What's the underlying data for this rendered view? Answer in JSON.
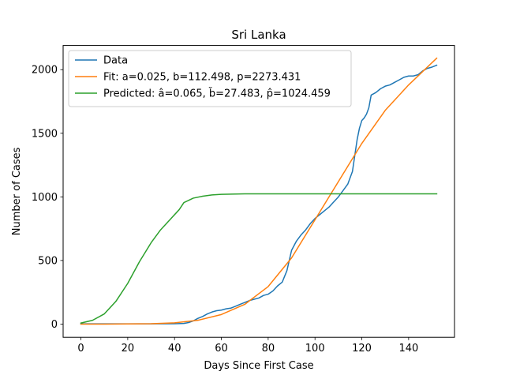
{
  "chart_data": {
    "type": "line",
    "title": "Sri Lanka",
    "xlabel": "Days Since First Case",
    "ylabel": "Number of Cases",
    "xlim": [
      -7.6,
      159.6
    ],
    "ylim": [
      -104,
      2190
    ],
    "xticks": [
      0,
      20,
      40,
      60,
      80,
      100,
      120,
      140
    ],
    "yticks": [
      0,
      500,
      1000,
      1500,
      2000
    ],
    "grid": false,
    "legend_position": "top-left",
    "series": [
      {
        "name": "Data",
        "color": "#1f77b4",
        "x": [
          0,
          10,
          20,
          30,
          40,
          44,
          46,
          48,
          50,
          52,
          54,
          56,
          58,
          60,
          62,
          64,
          66,
          68,
          70,
          72,
          74,
          76,
          78,
          80,
          82,
          84,
          86,
          88,
          90,
          92,
          94,
          96,
          98,
          100,
          102,
          104,
          106,
          108,
          110,
          112,
          114,
          116,
          118,
          119,
          120,
          121,
          122,
          123,
          124,
          126,
          128,
          130,
          132,
          134,
          136,
          138,
          140,
          142,
          144,
          146,
          148,
          150,
          152
        ],
        "values": [
          2,
          2,
          2,
          2,
          3,
          5,
          12,
          25,
          45,
          60,
          80,
          95,
          105,
          110,
          120,
          125,
          140,
          155,
          170,
          185,
          195,
          205,
          225,
          235,
          260,
          300,
          330,
          420,
          580,
          650,
          700,
          740,
          790,
          830,
          860,
          890,
          920,
          960,
          1000,
          1050,
          1100,
          1200,
          1450,
          1540,
          1600,
          1620,
          1650,
          1700,
          1800,
          1820,
          1850,
          1870,
          1880,
          1900,
          1920,
          1940,
          1950,
          1950,
          1960,
          1990,
          2010,
          2020,
          2035
        ]
      },
      {
        "name": "Fit: a=0.025, b=112.498, p=2273.431",
        "color": "#ff7f0e",
        "x": [
          0,
          10,
          20,
          30,
          40,
          50,
          60,
          70,
          80,
          90,
          100,
          110,
          120,
          130,
          140,
          152
        ],
        "values": [
          0,
          0,
          1,
          3,
          10,
          30,
          75,
          155,
          295,
          520,
          820,
          1120,
          1420,
          1680,
          1880,
          2090
        ]
      },
      {
        "name": "Predicted: â=0.065, b̆=27.483, p̂=1024.459",
        "color": "#2ca02c",
        "x": [
          0,
          5,
          10,
          15,
          20,
          25,
          30,
          34,
          38,
          42,
          44,
          48,
          52,
          56,
          60,
          70,
          80,
          100,
          120,
          152
        ],
        "values": [
          8,
          30,
          80,
          180,
          320,
          490,
          640,
          740,
          820,
          900,
          955,
          990,
          1005,
          1015,
          1020,
          1024,
          1024,
          1024,
          1024,
          1024
        ]
      }
    ]
  }
}
